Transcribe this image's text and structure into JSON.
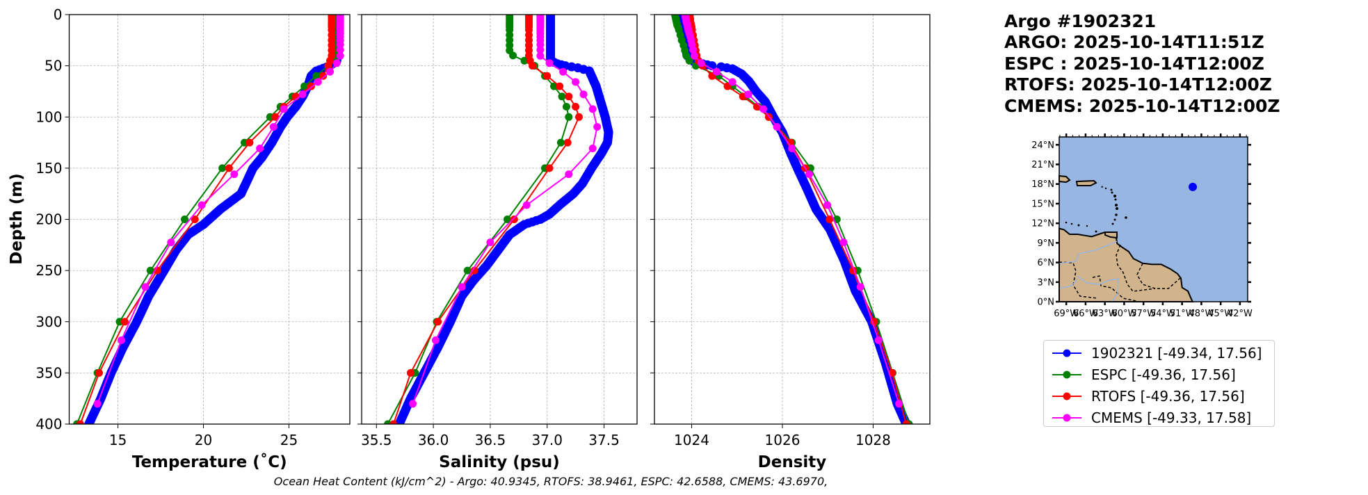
{
  "header": {
    "lines": [
      "Argo #1902321",
      "ARGO: 2025-10-14T11:51Z",
      "ESPC : 2025-10-14T12:00Z",
      "RTOFS: 2025-10-14T12:00Z",
      "CMEMS: 2025-10-14T12:00Z"
    ]
  },
  "footer": {
    "ohc_text": "Ocean Heat Content (kJ/cm^2) - Argo: 40.9345,  RTOFS: 38.9461,  ESPC: 42.6588,  CMEMS: 43.6970,"
  },
  "map": {
    "lat_labels": [
      "0°N",
      "3°N",
      "6°N",
      "9°N",
      "12°N",
      "15°N",
      "18°N",
      "21°N",
      "24°N"
    ],
    "lat_values": [
      0,
      3,
      6,
      9,
      12,
      15,
      18,
      21,
      24
    ],
    "lon_labels": [
      "69°W",
      "66°W",
      "63°W",
      "60°W",
      "57°W",
      "54°W",
      "51°W",
      "48°W",
      "45°W",
      "42°W"
    ],
    "lon_values": [
      -69,
      -66,
      -63,
      -60,
      -57,
      -54,
      -51,
      -48,
      -45,
      -42
    ],
    "lon_range": [
      -70.1,
      -40.8
    ],
    "lat_range": [
      0,
      25.2
    ],
    "float_position": {
      "lon": -49.34,
      "lat": 17.56
    },
    "ocean_color": "#97b6e1",
    "land_color": "#d2b48c",
    "marker_color": "#0000ff"
  },
  "chart_data": {
    "type": "line",
    "ylabel": "Depth (m)",
    "ylim": [
      400,
      0
    ],
    "yticks": [
      0,
      50,
      100,
      150,
      200,
      250,
      300,
      350,
      400
    ],
    "ytick_labels": [
      "0",
      "50",
      "100",
      "150",
      "200",
      "250",
      "300",
      "350",
      "400"
    ],
    "grid": true,
    "legend_placement": "right",
    "panels": [
      {
        "key": "temp",
        "xlabel": "Temperature (˚C)",
        "xlim": [
          12.15,
          28.56
        ],
        "xticks": [
          15,
          20,
          25
        ],
        "xtick_labels": [
          "15",
          "20",
          "25"
        ]
      },
      {
        "key": "sal",
        "xlabel": "Salinity (psu)",
        "xlim": [
          35.37,
          37.79
        ],
        "xticks": [
          35.5,
          36.0,
          36.5,
          37.0,
          37.5
        ],
        "xtick_labels": [
          "35.5",
          "36.0",
          "36.5",
          "37.0",
          "37.5"
        ]
      },
      {
        "key": "dens",
        "xlabel": "Density",
        "xlim": [
          1023.18,
          1029.25
        ],
        "xticks": [
          1024,
          1026,
          1028
        ],
        "xtick_labels": [
          "1024",
          "1026",
          "1028"
        ]
      }
    ],
    "series": [
      {
        "name": "1902321 [-49.34, 17.56]",
        "color": "#0000ff",
        "dense_profile": true,
        "temp": [
          [
            0,
            27.8
          ],
          [
            45,
            27.8
          ],
          [
            50,
            27.4
          ],
          [
            55,
            26.6
          ],
          [
            60,
            26.3
          ],
          [
            70,
            26.1
          ],
          [
            80,
            25.8
          ],
          [
            90,
            25.4
          ],
          [
            100,
            24.9
          ],
          [
            110,
            24.5
          ],
          [
            125,
            24.0
          ],
          [
            140,
            23.4
          ],
          [
            150,
            22.9
          ],
          [
            175,
            22.2
          ],
          [
            190,
            21.0
          ],
          [
            205,
            20.0
          ],
          [
            215,
            19.1
          ],
          [
            230,
            18.4
          ],
          [
            250,
            17.7
          ],
          [
            275,
            16.8
          ],
          [
            300,
            16.1
          ],
          [
            325,
            15.3
          ],
          [
            350,
            14.6
          ],
          [
            375,
            14.0
          ],
          [
            400,
            13.3
          ]
        ],
        "sal": [
          [
            0,
            37.03
          ],
          [
            45,
            37.03
          ],
          [
            48,
            37.09
          ],
          [
            50,
            37.16
          ],
          [
            52,
            37.27
          ],
          [
            55,
            37.37
          ],
          [
            70,
            37.43
          ],
          [
            100,
            37.51
          ],
          [
            115,
            37.54
          ],
          [
            125,
            37.53
          ],
          [
            135,
            37.48
          ],
          [
            150,
            37.39
          ],
          [
            165,
            37.31
          ],
          [
            175,
            37.23
          ],
          [
            185,
            37.12
          ],
          [
            195,
            37.02
          ],
          [
            200,
            36.94
          ],
          [
            205,
            36.8
          ],
          [
            215,
            36.67
          ],
          [
            230,
            36.57
          ],
          [
            245,
            36.47
          ],
          [
            260,
            36.35
          ],
          [
            275,
            36.25
          ],
          [
            300,
            36.15
          ],
          [
            325,
            36.04
          ],
          [
            350,
            35.92
          ],
          [
            375,
            35.8
          ],
          [
            400,
            35.7
          ]
        ],
        "dens": [
          [
            0,
            1023.76
          ],
          [
            40,
            1023.9
          ],
          [
            46,
            1024.05
          ],
          [
            48,
            1024.24
          ],
          [
            50,
            1024.45
          ],
          [
            51,
            1024.65
          ],
          [
            53,
            1024.9
          ],
          [
            58,
            1025.1
          ],
          [
            65,
            1025.26
          ],
          [
            75,
            1025.42
          ],
          [
            85,
            1025.62
          ],
          [
            100,
            1025.8
          ],
          [
            115,
            1026.0
          ],
          [
            135,
            1026.18
          ],
          [
            150,
            1026.33
          ],
          [
            170,
            1026.54
          ],
          [
            190,
            1026.74
          ],
          [
            210,
            1027.05
          ],
          [
            240,
            1027.36
          ],
          [
            270,
            1027.61
          ],
          [
            300,
            1027.97
          ],
          [
            340,
            1028.27
          ],
          [
            380,
            1028.53
          ],
          [
            400,
            1028.73
          ]
        ]
      },
      {
        "name": "ESPC [-49.36, 17.56]",
        "color": "#008000",
        "depth": [
          0,
          2,
          4,
          6,
          8,
          10,
          12,
          15,
          20,
          25,
          30,
          35,
          40,
          45,
          50,
          60,
          70,
          80,
          90,
          100,
          125,
          150,
          200,
          250,
          300,
          350,
          400
        ],
        "temp": [
          27.8,
          27.8,
          27.8,
          27.8,
          27.8,
          27.8,
          27.8,
          27.8,
          27.8,
          27.8,
          27.8,
          27.8,
          27.8,
          27.7,
          27.3,
          26.6,
          25.9,
          25.2,
          24.5,
          23.9,
          22.4,
          21.1,
          18.9,
          16.9,
          15.1,
          13.8,
          12.6
        ],
        "sal": [
          36.67,
          36.67,
          36.67,
          36.67,
          36.67,
          36.67,
          36.67,
          36.67,
          36.67,
          36.67,
          36.67,
          36.67,
          36.7,
          36.8,
          36.89,
          36.98,
          37.06,
          37.13,
          37.17,
          37.19,
          37.12,
          36.98,
          36.65,
          36.3,
          36.03,
          35.84,
          35.6
        ],
        "dens": [
          1023.63,
          1023.64,
          1023.65,
          1023.66,
          1023.67,
          1023.68,
          1023.7,
          1023.72,
          1023.75,
          1023.78,
          1023.82,
          1023.85,
          1023.88,
          1023.95,
          1024.09,
          1024.6,
          1024.9,
          1025.19,
          1025.47,
          1025.7,
          1026.21,
          1026.62,
          1027.2,
          1027.66,
          1028.07,
          1028.43,
          1028.79
        ]
      },
      {
        "name": "RTOFS [-49.36, 17.56]",
        "color": "#ff0000",
        "depth": [
          0,
          2,
          4,
          6,
          8,
          10,
          12,
          15,
          20,
          25,
          30,
          35,
          40,
          45,
          50,
          60,
          70,
          80,
          90,
          100,
          125,
          150,
          200,
          250,
          300,
          350,
          400
        ],
        "temp": [
          27.5,
          27.5,
          27.5,
          27.5,
          27.5,
          27.5,
          27.5,
          27.5,
          27.5,
          27.5,
          27.5,
          27.5,
          27.5,
          27.4,
          27.3,
          27.0,
          26.3,
          25.4,
          24.7,
          24.2,
          22.7,
          21.5,
          19.5,
          17.3,
          15.4,
          13.9,
          12.8
        ],
        "sal": [
          36.84,
          36.84,
          36.84,
          36.84,
          36.84,
          36.84,
          36.84,
          36.84,
          36.84,
          36.84,
          36.84,
          36.84,
          36.84,
          36.85,
          36.87,
          37.0,
          37.11,
          37.19,
          37.25,
          37.28,
          37.18,
          37.02,
          36.71,
          36.36,
          36.04,
          35.8,
          35.65
        ],
        "dens": [
          1023.96,
          1023.96,
          1023.97,
          1023.97,
          1023.98,
          1023.99,
          1024.0,
          1024.01,
          1024.03,
          1024.05,
          1024.07,
          1024.09,
          1024.11,
          1024.15,
          1024.24,
          1024.45,
          1024.79,
          1025.13,
          1025.44,
          1025.7,
          1026.18,
          1026.5,
          1027.04,
          1027.56,
          1028.02,
          1028.42,
          1028.73
        ]
      },
      {
        "name": "CMEMS [-49.33, 17.58]",
        "color": "#ff00ff",
        "depth": [
          0.5,
          1.5,
          2.6,
          3.8,
          5.1,
          6.4,
          7.9,
          9.6,
          11.4,
          13.5,
          15.8,
          18.5,
          21.6,
          25.2,
          29.4,
          34.4,
          40.3,
          47.4,
          55.8,
          65.8,
          77.9,
          92.3,
          109.7,
          130.7,
          155.9,
          186.1,
          222.5,
          266.0,
          318.1,
          380.2
        ],
        "temp": [
          28.0,
          28.0,
          28.0,
          28.0,
          28.0,
          28.0,
          28.0,
          28.0,
          28.0,
          28.0,
          28.0,
          28.0,
          28.0,
          28.0,
          28.0,
          28.0,
          28.0,
          27.8,
          27.4,
          26.7,
          25.8,
          24.7,
          24.1,
          23.3,
          21.8,
          19.9,
          18.1,
          16.6,
          15.2,
          13.8
        ],
        "sal": [
          36.94,
          36.94,
          36.94,
          36.94,
          36.94,
          36.94,
          36.94,
          36.94,
          36.94,
          36.94,
          36.94,
          36.94,
          36.94,
          36.94,
          36.94,
          36.94,
          36.94,
          37.02,
          37.14,
          37.25,
          37.32,
          37.4,
          37.44,
          37.4,
          37.19,
          36.82,
          36.5,
          36.25,
          36.02,
          35.82
        ],
        "dens": [
          1023.86,
          1023.86,
          1023.87,
          1023.87,
          1023.88,
          1023.88,
          1023.89,
          1023.9,
          1023.91,
          1023.92,
          1023.93,
          1023.95,
          1023.97,
          1023.99,
          1024.01,
          1024.03,
          1024.06,
          1024.21,
          1024.55,
          1024.9,
          1025.25,
          1025.58,
          1025.88,
          1026.21,
          1026.59,
          1026.99,
          1027.35,
          1027.72,
          1028.12,
          1028.57
        ]
      }
    ]
  }
}
